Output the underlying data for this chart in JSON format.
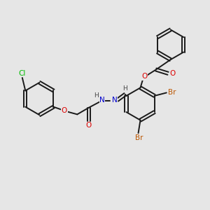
{
  "bg_color": "#e6e6e6",
  "bond_color": "#1a1a1a",
  "bond_width": 1.4,
  "dbl_sep": 0.07,
  "atom_colors": {
    "O": "#dd0000",
    "N": "#0000cc",
    "Br": "#bb5500",
    "Cl": "#00bb00",
    "H": "#444444",
    "C": "#1a1a1a"
  },
  "font_size": 7.0
}
